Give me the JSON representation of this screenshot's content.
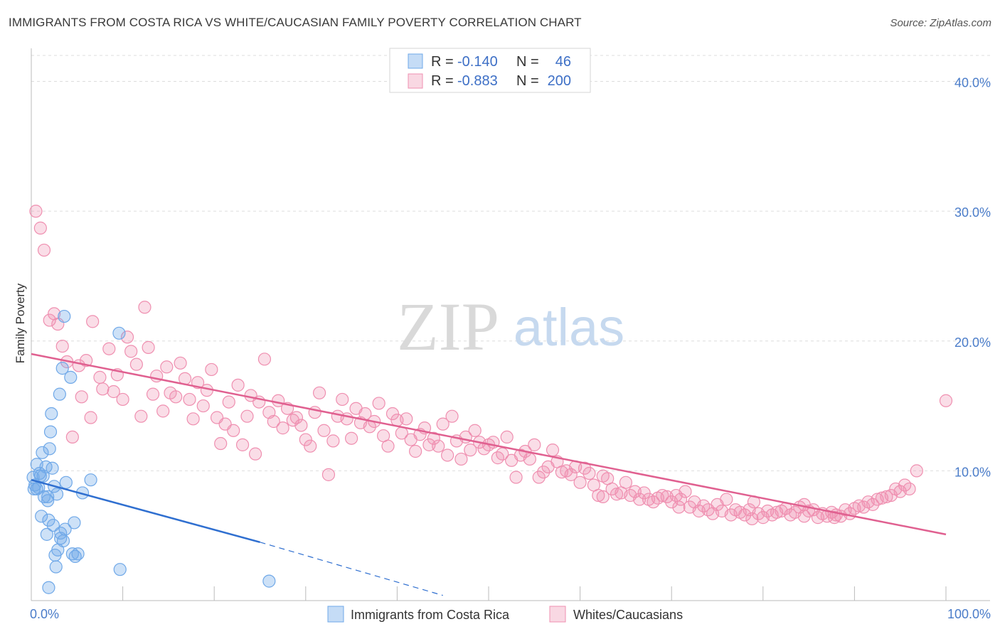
{
  "title": "IMMIGRANTS FROM COSTA RICA VS WHITE/CAUCASIAN FAMILY POVERTY CORRELATION CHART",
  "source": "Source: ZipAtlas.com",
  "watermark": {
    "part1": "ZIP",
    "part2": "atlas"
  },
  "colors": {
    "blue": "#6fa8e8",
    "blue_fill": "rgba(111,168,232,0.35)",
    "blue_line": "#2f6fd0",
    "pink": "#ef8fb0",
    "pink_fill": "rgba(239,143,176,0.3)",
    "pink_line": "#e06090",
    "tick": "#4a7cc9",
    "grid": "#dddddd"
  },
  "stats": [
    {
      "r_label": "R =",
      "r_value": "-0.140",
      "n_label": "N =",
      "n_value": "46",
      "color": "blue"
    },
    {
      "r_label": "R =",
      "r_value": "-0.883",
      "n_label": "N =",
      "n_value": "200",
      "color": "pink"
    }
  ],
  "chart_data": {
    "type": "scatter",
    "title": "IMMIGRANTS FROM COSTA RICA VS WHITE/CAUCASIAN FAMILY POVERTY CORRELATION CHART",
    "xlabel": "",
    "ylabel": "Family Poverty",
    "xlim": [
      0,
      100
    ],
    "ylim": [
      0,
      42
    ],
    "x_tick_labels": [
      "0.0%",
      "100.0%"
    ],
    "y_ticks": [
      10,
      20,
      30,
      40
    ],
    "y_tick_labels": [
      "10.0%",
      "20.0%",
      "30.0%",
      "40.0%"
    ],
    "grid": "horizontal dashed",
    "legend_position": "bottom",
    "series": [
      {
        "name": "Immigrants from Costa Rica",
        "color": "blue",
        "trend": {
          "x0": 0,
          "y0": 9.3,
          "x1": 25,
          "y1": 4.5,
          "dashed_to_x": 45,
          "dashed_to_y": 0.4
        },
        "points": [
          [
            0.2,
            9.5
          ],
          [
            0.4,
            8.9
          ],
          [
            0.6,
            10.5
          ],
          [
            0.8,
            8.7
          ],
          [
            1.0,
            9.6
          ],
          [
            0.3,
            8.6
          ],
          [
            1.2,
            11.4
          ],
          [
            1.3,
            9.6
          ],
          [
            1.4,
            8.0
          ],
          [
            1.6,
            10.3
          ],
          [
            1.8,
            8.0
          ],
          [
            1.7,
            5.1
          ],
          [
            1.9,
            6.2
          ],
          [
            1.8,
            7.7
          ],
          [
            2.0,
            11.7
          ],
          [
            2.1,
            13.0
          ],
          [
            2.2,
            14.4
          ],
          [
            2.3,
            10.2
          ],
          [
            2.4,
            5.8
          ],
          [
            2.5,
            8.8
          ],
          [
            2.6,
            3.5
          ],
          [
            2.7,
            2.6
          ],
          [
            2.8,
            8.2
          ],
          [
            2.9,
            3.9
          ],
          [
            3.1,
            15.9
          ],
          [
            3.2,
            5.2
          ],
          [
            3.2,
            4.8
          ],
          [
            3.4,
            17.9
          ],
          [
            3.5,
            4.6
          ],
          [
            3.6,
            21.9
          ],
          [
            3.7,
            5.5
          ],
          [
            3.8,
            9.1
          ],
          [
            4.3,
            17.2
          ],
          [
            4.5,
            3.6
          ],
          [
            4.7,
            6.0
          ],
          [
            4.8,
            3.4
          ],
          [
            5.1,
            3.6
          ],
          [
            5.6,
            8.3
          ],
          [
            6.5,
            9.3
          ],
          [
            1.9,
            1.0
          ],
          [
            9.6,
            20.6
          ],
          [
            9.7,
            2.4
          ],
          [
            1.1,
            6.5
          ],
          [
            0.9,
            9.8
          ],
          [
            26.0,
            1.5
          ],
          [
            0.6,
            8.6
          ]
        ]
      },
      {
        "name": "Whites/Caucasians",
        "color": "pink",
        "trend": {
          "x0": 0,
          "y0": 19.0,
          "x1": 100,
          "y1": 5.1
        },
        "points": [
          [
            0.5,
            30.0
          ],
          [
            1.0,
            28.7
          ],
          [
            1.4,
            27.0
          ],
          [
            2.0,
            21.6
          ],
          [
            2.5,
            22.1
          ],
          [
            2.9,
            21.3
          ],
          [
            3.4,
            19.6
          ],
          [
            3.9,
            18.4
          ],
          [
            4.5,
            12.6
          ],
          [
            5.2,
            18.1
          ],
          [
            5.5,
            15.7
          ],
          [
            6.0,
            18.5
          ],
          [
            6.5,
            14.1
          ],
          [
            6.7,
            21.5
          ],
          [
            7.5,
            17.2
          ],
          [
            7.8,
            16.3
          ],
          [
            8.5,
            19.4
          ],
          [
            9.0,
            16.1
          ],
          [
            9.4,
            17.4
          ],
          [
            10.0,
            15.5
          ],
          [
            10.5,
            20.3
          ],
          [
            10.9,
            19.2
          ],
          [
            11.5,
            18.2
          ],
          [
            12.0,
            14.2
          ],
          [
            12.4,
            22.6
          ],
          [
            12.8,
            19.5
          ],
          [
            13.3,
            15.9
          ],
          [
            13.7,
            17.3
          ],
          [
            14.4,
            14.6
          ],
          [
            14.8,
            18.0
          ],
          [
            15.2,
            16.0
          ],
          [
            15.8,
            15.7
          ],
          [
            16.3,
            18.3
          ],
          [
            16.8,
            17.1
          ],
          [
            17.3,
            15.5
          ],
          [
            17.7,
            14.0
          ],
          [
            18.2,
            16.8
          ],
          [
            18.8,
            15.0
          ],
          [
            19.2,
            16.2
          ],
          [
            19.7,
            17.8
          ],
          [
            20.3,
            14.1
          ],
          [
            20.7,
            12.1
          ],
          [
            21.2,
            13.6
          ],
          [
            21.6,
            15.3
          ],
          [
            22.1,
            13.1
          ],
          [
            22.6,
            16.6
          ],
          [
            23.1,
            12.0
          ],
          [
            23.6,
            14.2
          ],
          [
            24.0,
            15.8
          ],
          [
            24.5,
            11.3
          ],
          [
            24.9,
            15.3
          ],
          [
            25.5,
            18.6
          ],
          [
            26.0,
            14.5
          ],
          [
            26.5,
            13.8
          ],
          [
            27.0,
            15.4
          ],
          [
            27.5,
            13.3
          ],
          [
            28.0,
            14.8
          ],
          [
            28.6,
            13.9
          ],
          [
            29.0,
            14.1
          ],
          [
            29.5,
            13.5
          ],
          [
            30.0,
            12.4
          ],
          [
            30.5,
            11.9
          ],
          [
            31.0,
            14.5
          ],
          [
            31.5,
            16.0
          ],
          [
            32.0,
            13.1
          ],
          [
            32.5,
            9.7
          ],
          [
            33.0,
            12.3
          ],
          [
            33.5,
            14.2
          ],
          [
            34.0,
            15.5
          ],
          [
            34.5,
            14.0
          ],
          [
            35.0,
            12.5
          ],
          [
            35.5,
            14.8
          ],
          [
            36.0,
            13.7
          ],
          [
            36.5,
            14.4
          ],
          [
            37.0,
            13.4
          ],
          [
            37.5,
            13.8
          ],
          [
            38.0,
            15.2
          ],
          [
            38.5,
            12.7
          ],
          [
            39.0,
            11.9
          ],
          [
            39.5,
            14.4
          ],
          [
            40.0,
            13.9
          ],
          [
            40.5,
            12.9
          ],
          [
            41.0,
            14.0
          ],
          [
            41.5,
            12.4
          ],
          [
            42.0,
            11.5
          ],
          [
            42.5,
            12.8
          ],
          [
            43.0,
            13.3
          ],
          [
            43.5,
            12.0
          ],
          [
            44.0,
            12.5
          ],
          [
            44.5,
            11.9
          ],
          [
            45.0,
            13.6
          ],
          [
            45.5,
            11.2
          ],
          [
            46.0,
            14.2
          ],
          [
            46.5,
            12.3
          ],
          [
            47.0,
            10.9
          ],
          [
            47.5,
            12.6
          ],
          [
            48.0,
            11.6
          ],
          [
            48.5,
            13.1
          ],
          [
            49.0,
            12.2
          ],
          [
            49.5,
            11.7
          ],
          [
            50.0,
            12.0
          ],
          [
            50.5,
            12.2
          ],
          [
            51.0,
            11.0
          ],
          [
            51.5,
            11.3
          ],
          [
            52.0,
            12.6
          ],
          [
            52.5,
            10.8
          ],
          [
            53.0,
            9.5
          ],
          [
            53.5,
            11.2
          ],
          [
            54.0,
            11.5
          ],
          [
            54.5,
            10.9
          ],
          [
            55.0,
            12.0
          ],
          [
            55.5,
            9.5
          ],
          [
            56.0,
            9.9
          ],
          [
            56.5,
            10.3
          ],
          [
            57.0,
            11.6
          ],
          [
            57.5,
            10.7
          ],
          [
            58.0,
            9.9
          ],
          [
            58.5,
            10.0
          ],
          [
            59.0,
            9.7
          ],
          [
            59.5,
            10.3
          ],
          [
            60.0,
            9.1
          ],
          [
            60.5,
            10.2
          ],
          [
            61.0,
            9.8
          ],
          [
            61.5,
            8.9
          ],
          [
            62.0,
            8.1
          ],
          [
            62.5,
            9.6
          ],
          [
            63.0,
            9.4
          ],
          [
            63.5,
            8.6
          ],
          [
            64.0,
            8.2
          ],
          [
            64.5,
            8.3
          ],
          [
            65.0,
            9.1
          ],
          [
            65.5,
            8.1
          ],
          [
            66.0,
            8.4
          ],
          [
            66.5,
            7.8
          ],
          [
            67.0,
            8.3
          ],
          [
            67.5,
            7.8
          ],
          [
            68.0,
            7.6
          ],
          [
            68.5,
            7.9
          ],
          [
            69.0,
            8.1
          ],
          [
            69.5,
            8.0
          ],
          [
            70.0,
            7.6
          ],
          [
            70.5,
            8.1
          ],
          [
            71.0,
            7.8
          ],
          [
            71.5,
            8.4
          ],
          [
            72.0,
            7.2
          ],
          [
            72.5,
            7.6
          ],
          [
            73.0,
            6.9
          ],
          [
            73.5,
            7.3
          ],
          [
            74.0,
            7.0
          ],
          [
            74.5,
            6.7
          ],
          [
            75.0,
            7.4
          ],
          [
            75.5,
            6.9
          ],
          [
            76.0,
            7.8
          ],
          [
            76.5,
            6.6
          ],
          [
            77.0,
            7.0
          ],
          [
            77.5,
            6.8
          ],
          [
            78.0,
            6.6
          ],
          [
            78.5,
            7.0
          ],
          [
            79.0,
            7.6
          ],
          [
            79.5,
            6.7
          ],
          [
            80.0,
            6.4
          ],
          [
            80.5,
            6.9
          ],
          [
            81.0,
            6.6
          ],
          [
            81.5,
            6.8
          ],
          [
            82.0,
            6.9
          ],
          [
            82.5,
            7.1
          ],
          [
            83.0,
            6.6
          ],
          [
            83.5,
            6.8
          ],
          [
            84.0,
            7.2
          ],
          [
            84.5,
            6.5
          ],
          [
            85.0,
            6.9
          ],
          [
            85.5,
            7.0
          ],
          [
            86.0,
            6.4
          ],
          [
            86.5,
            6.7
          ],
          [
            87.0,
            6.5
          ],
          [
            87.5,
            6.8
          ],
          [
            88.0,
            6.6
          ],
          [
            88.5,
            6.5
          ],
          [
            89.0,
            7.0
          ],
          [
            89.5,
            6.7
          ],
          [
            90.0,
            7.1
          ],
          [
            90.5,
            7.3
          ],
          [
            91.0,
            7.2
          ],
          [
            91.5,
            7.6
          ],
          [
            92.0,
            7.4
          ],
          [
            92.5,
            7.8
          ],
          [
            93.0,
            7.9
          ],
          [
            93.5,
            8.0
          ],
          [
            94.0,
            8.1
          ],
          [
            94.5,
            8.6
          ],
          [
            95.0,
            8.4
          ],
          [
            95.5,
            8.9
          ],
          [
            96.0,
            8.6
          ],
          [
            96.8,
            10.0
          ],
          [
            100.0,
            15.4
          ],
          [
            62.5,
            8.0
          ],
          [
            70.8,
            7.2
          ],
          [
            78.8,
            6.3
          ],
          [
            84.5,
            7.4
          ],
          [
            87.8,
            6.4
          ]
        ]
      }
    ]
  },
  "legend": [
    {
      "label": "Immigrants from Costa Rica",
      "color": "blue"
    },
    {
      "label": "Whites/Caucasians",
      "color": "pink"
    }
  ]
}
